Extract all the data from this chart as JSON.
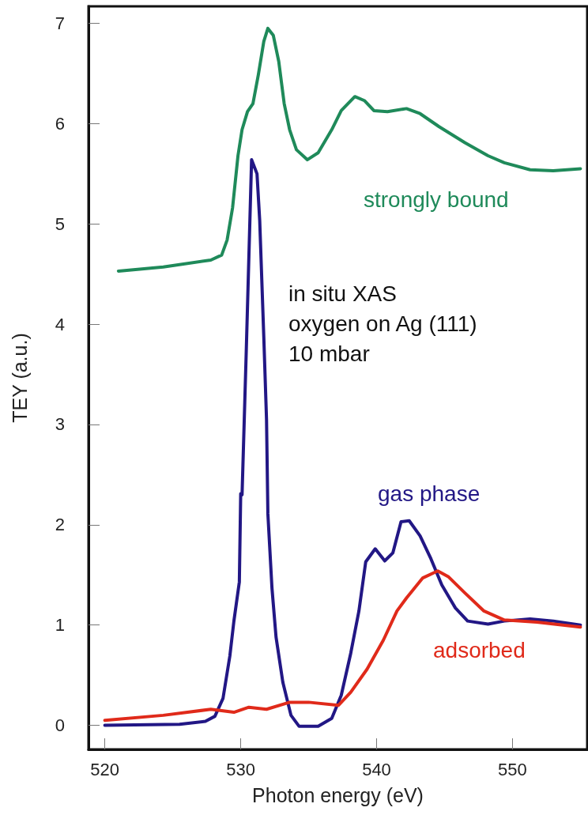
{
  "chart_data": {
    "type": "line",
    "xlabel": "Photon energy (eV)",
    "ylabel": "TEY (a.u.)",
    "xlim": [
      518.8,
      555.5
    ],
    "xticks": [
      520,
      530,
      540,
      550
    ],
    "ylim": [
      -0.24,
      7.17
    ],
    "yticks": [
      0,
      1,
      2,
      3,
      4,
      5,
      6,
      7
    ],
    "grid": false,
    "legend": false,
    "marker": "none",
    "line_style": "solid",
    "annotations": [
      "in situ XAS",
      "oxygen on Ag (111)",
      "10 mbar"
    ],
    "series": [
      {
        "name": "strongly bound",
        "color": "#1f8a5a",
        "x": [
          521.0,
          524.3,
          527.8,
          528.6,
          529.0,
          529.4,
          529.8,
          530.1,
          530.5,
          530.9,
          531.3,
          531.7,
          532.0,
          532.4,
          532.8,
          533.2,
          533.6,
          534.1,
          534.9,
          535.7,
          536.7,
          537.4,
          538.4,
          539.1,
          539.8,
          540.8,
          542.2,
          543.2,
          544.6,
          546.5,
          548.2,
          549.4,
          551.3,
          553.0,
          555.0
        ],
        "values": [
          4.53,
          4.57,
          4.64,
          4.69,
          4.84,
          5.16,
          5.68,
          5.94,
          6.12,
          6.2,
          6.49,
          6.82,
          6.95,
          6.88,
          6.62,
          6.2,
          5.94,
          5.74,
          5.64,
          5.71,
          5.94,
          6.13,
          6.27,
          6.23,
          6.13,
          6.12,
          6.15,
          6.1,
          5.97,
          5.81,
          5.68,
          5.61,
          5.54,
          5.53,
          5.55
        ]
      },
      {
        "name": "gas phase",
        "color": "#221785",
        "x": [
          520.0,
          525.5,
          527.4,
          528.1,
          528.7,
          529.2,
          529.5,
          529.9,
          530.0,
          530.1,
          530.4,
          530.8,
          531.2,
          531.4,
          531.7,
          531.9,
          532.0,
          532.3,
          532.6,
          533.1,
          533.7,
          534.3,
          535.7,
          536.7,
          537.4,
          538.1,
          538.7,
          539.2,
          539.9,
          540.6,
          541.2,
          541.8,
          542.4,
          543.2,
          544.0,
          544.8,
          545.8,
          546.7,
          548.2,
          549.4,
          551.3,
          553.0,
          555.0
        ],
        "values": [
          0.0,
          0.01,
          0.04,
          0.09,
          0.27,
          0.69,
          1.04,
          1.43,
          2.31,
          2.3,
          3.69,
          5.64,
          5.5,
          5.03,
          3.87,
          3.05,
          2.11,
          1.37,
          0.88,
          0.43,
          0.1,
          -0.01,
          -0.01,
          0.07,
          0.3,
          0.72,
          1.14,
          1.63,
          1.76,
          1.64,
          1.72,
          2.03,
          2.04,
          1.89,
          1.66,
          1.4,
          1.17,
          1.04,
          1.01,
          1.04,
          1.06,
          1.04,
          1.0
        ]
      },
      {
        "name": "adsorbed",
        "color": "#e02a1a",
        "x": [
          520.0,
          524.3,
          527.8,
          529.5,
          530.6,
          531.9,
          533.6,
          535.0,
          537.2,
          538.1,
          539.3,
          540.5,
          541.5,
          542.2,
          543.4,
          544.5,
          545.3,
          546.5,
          547.9,
          549.4,
          551.8,
          555.0
        ],
        "values": [
          0.05,
          0.1,
          0.16,
          0.13,
          0.18,
          0.16,
          0.23,
          0.23,
          0.2,
          0.33,
          0.56,
          0.85,
          1.14,
          1.27,
          1.47,
          1.54,
          1.48,
          1.32,
          1.14,
          1.05,
          1.03,
          0.98
        ]
      }
    ]
  }
}
